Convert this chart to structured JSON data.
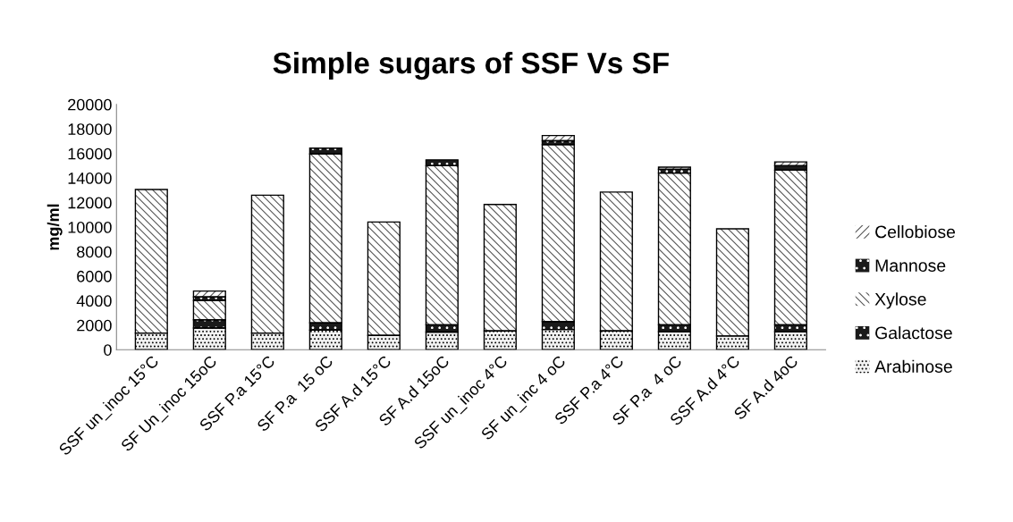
{
  "chart_data": {
    "type": "bar",
    "title": "Simple sugars of SSF Vs SF",
    "ylabel": "mg/ml",
    "stacked": true,
    "categories": [
      "SSF un_inoc 15°C",
      "SF Un_inoc 15oC",
      "SSF P.a 15°C",
      "SF P.a  15 oC",
      "SSF A.d 15°C",
      "SF A.d 15oC",
      "SSF un_inoc 4°C",
      "SF un_inc 4 oC",
      "SSF P.a 4°C",
      "SF P.a  4 oC",
      "SSF A.d 4°C",
      "SF A.d 4oC"
    ],
    "series": [
      {
        "name": "Arabinose",
        "color": "#f2f2f2",
        "values": [
          1360,
          1770,
          1360,
          1600,
          1170,
          1440,
          1530,
          1650,
          1530,
          1480,
          1120,
          1480
        ]
      },
      {
        "name": "Galactose",
        "color": "#1a1a1a",
        "values": [
          0,
          670,
          0,
          600,
          0,
          590,
          0,
          650,
          0,
          550,
          0,
          550
        ]
      },
      {
        "name": "Xylose",
        "color": "#ffffff",
        "values": [
          11700,
          1560,
          11240,
          13760,
          9240,
          12970,
          10310,
          14420,
          11320,
          12370,
          8740,
          12610
        ]
      },
      {
        "name": "Mannose",
        "color": "#1a1a1a",
        "values": [
          0,
          300,
          0,
          470,
          0,
          480,
          0,
          310,
          0,
          310,
          0,
          360
        ]
      },
      {
        "name": "Cellobiose",
        "color": "#ffffff",
        "values": [
          0,
          480,
          0,
          0,
          0,
          0,
          0,
          430,
          0,
          170,
          0,
          310
        ]
      }
    ],
    "ylim": [
      0,
      20000
    ],
    "yticks": [
      0,
      2000,
      4000,
      6000,
      8000,
      10000,
      12000,
      14000,
      16000,
      18000,
      20000
    ],
    "grid": false,
    "legend": "right"
  }
}
